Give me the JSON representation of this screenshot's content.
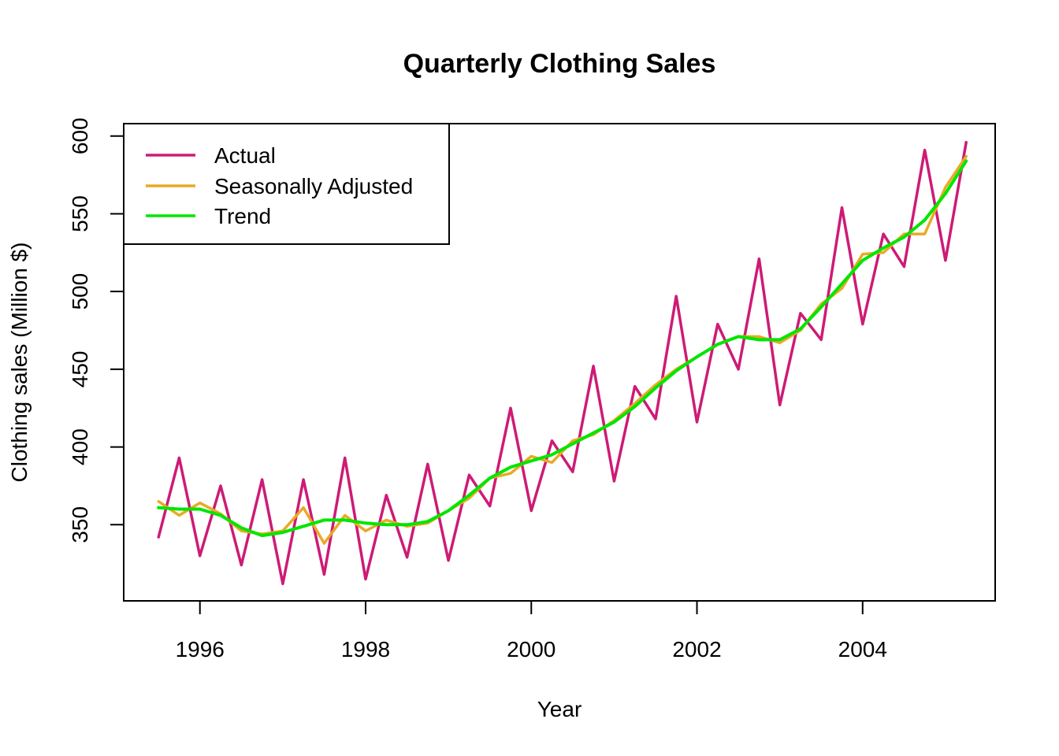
{
  "chart_data": {
    "type": "line",
    "title": "Quarterly Clothing Sales",
    "xlabel": "Year",
    "ylabel": "Clothing sales (Million $)",
    "xlim": [
      1995.08,
      2005.6
    ],
    "ylim": [
      301,
      608
    ],
    "x_ticks": [
      1996,
      1998,
      2000,
      2002,
      2004
    ],
    "y_ticks": [
      350,
      400,
      450,
      500,
      550,
      600
    ],
    "grid": false,
    "legend_position": "top-left",
    "x": [
      1995.5,
      1995.75,
      1996.0,
      1996.25,
      1996.5,
      1996.75,
      1997.0,
      1997.25,
      1997.5,
      1997.75,
      1998.0,
      1998.25,
      1998.5,
      1998.75,
      1999.0,
      1999.25,
      1999.5,
      1999.75,
      2000.0,
      2000.25,
      2000.5,
      2000.75,
      2001.0,
      2001.25,
      2001.5,
      2001.75,
      2002.0,
      2002.25,
      2002.5,
      2002.75,
      2003.0,
      2003.25,
      2003.5,
      2003.75,
      2004.0,
      2004.25,
      2004.5,
      2004.75,
      2005.0,
      2005.25
    ],
    "series": [
      {
        "name": "Actual",
        "color": "#CD1B76",
        "values": [
          342,
          393,
          330,
          375,
          324,
          379,
          312,
          379,
          318,
          393,
          315,
          369,
          329,
          389,
          327,
          382,
          362,
          425,
          359,
          404,
          384,
          452,
          378,
          439,
          418,
          497,
          416,
          479,
          450,
          521,
          427,
          486,
          469,
          554,
          479,
          537,
          516,
          591,
          520,
          596
        ]
      },
      {
        "name": "Seasonally Adjusted",
        "color": "#E8AA25",
        "values": [
          365,
          356,
          364,
          357,
          346,
          344,
          346,
          361,
          338,
          356,
          346,
          353,
          349,
          351,
          359,
          367,
          380,
          383,
          394,
          390,
          404,
          408,
          417,
          428,
          440,
          450,
          458,
          466,
          471,
          471,
          467,
          475,
          492,
          502,
          524,
          525,
          537,
          537,
          567,
          587
        ]
      },
      {
        "name": "Trend",
        "color": "#00E600",
        "values": [
          361,
          360,
          360,
          356,
          348,
          343,
          345,
          349,
          353,
          353,
          351,
          350,
          350,
          352,
          359,
          369,
          380,
          387,
          391,
          395,
          402,
          409,
          416,
          426,
          438,
          449,
          458,
          466,
          471,
          469,
          469,
          476,
          490,
          505,
          520,
          528,
          535,
          546,
          563,
          584
        ]
      }
    ]
  }
}
